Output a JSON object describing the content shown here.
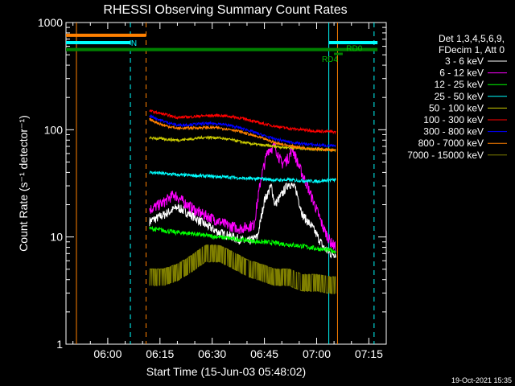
{
  "chart_data": {
    "type": "line",
    "title": "RHESSI Observing Summary Count Rates",
    "xlabel": "Start Time (15-Jun-03 05:48:02)",
    "ylabel": "Count Rate (s⁻¹ detector⁻¹)",
    "yscale": "log",
    "ylim": [
      1,
      1000
    ],
    "xlim_minutes": [
      348,
      440
    ],
    "y_ticks": [
      {
        "value": 1,
        "label": "1"
      },
      {
        "value": 10,
        "label": "10"
      },
      {
        "value": 100,
        "label": "100"
      },
      {
        "value": 1000,
        "label": "1000"
      }
    ],
    "x_ticks": [
      {
        "minute": 360,
        "label": "06:00"
      },
      {
        "minute": 375,
        "label": "06:15"
      },
      {
        "minute": 390,
        "label": "06:30"
      },
      {
        "minute": 405,
        "label": "06:45"
      },
      {
        "minute": 420,
        "label": "07:00"
      },
      {
        "minute": 435,
        "label": "07:15"
      }
    ],
    "legend_header": [
      "Det 1,3,4,5,6,9,",
      "FDecim 1, Att 0"
    ],
    "series": [
      {
        "name": "3 - 6 keV",
        "color": "#ffffff",
        "points": [
          [
            372,
            14
          ],
          [
            376,
            16
          ],
          [
            380,
            19
          ],
          [
            384,
            16
          ],
          [
            388,
            13
          ],
          [
            392,
            11
          ],
          [
            396,
            10
          ],
          [
            400,
            9
          ],
          [
            403,
            10
          ],
          [
            405,
            22
          ],
          [
            407,
            30
          ],
          [
            408,
            20
          ],
          [
            410,
            25
          ],
          [
            412,
            32
          ],
          [
            414,
            28
          ],
          [
            416,
            16
          ],
          [
            419,
            12
          ],
          [
            422,
            8
          ],
          [
            424,
            7
          ],
          [
            425.5,
            7
          ]
        ]
      },
      {
        "name": "6 - 12 keV",
        "color": "#ff00ff",
        "points": [
          [
            372,
            18
          ],
          [
            376,
            21
          ],
          [
            379,
            25
          ],
          [
            382,
            21
          ],
          [
            386,
            17
          ],
          [
            390,
            15
          ],
          [
            394,
            13
          ],
          [
            398,
            12
          ],
          [
            402,
            13
          ],
          [
            404,
            35
          ],
          [
            406,
            65
          ],
          [
            408,
            70
          ],
          [
            410,
            48
          ],
          [
            412,
            55
          ],
          [
            413,
            68
          ],
          [
            415,
            45
          ],
          [
            417,
            32
          ],
          [
            420,
            18
          ],
          [
            422,
            12
          ],
          [
            424,
            9
          ],
          [
            425.5,
            8
          ]
        ]
      },
      {
        "name": "12 - 25 keV",
        "color": "#00ff00",
        "points": [
          [
            372,
            12
          ],
          [
            376,
            11.5
          ],
          [
            380,
            11
          ],
          [
            384,
            10.8
          ],
          [
            388,
            10.3
          ],
          [
            392,
            10
          ],
          [
            396,
            9.6
          ],
          [
            400,
            9.3
          ],
          [
            404,
            9
          ],
          [
            408,
            8.8
          ],
          [
            412,
            8.5
          ],
          [
            416,
            8.2
          ],
          [
            420,
            7.8
          ],
          [
            424,
            7.5
          ],
          [
            425.5,
            7.3
          ]
        ]
      },
      {
        "name": "25 - 50 keV",
        "color": "#00ffff",
        "points": [
          [
            372,
            40
          ],
          [
            376,
            39
          ],
          [
            380,
            38
          ],
          [
            384,
            37.5
          ],
          [
            388,
            37
          ],
          [
            392,
            36.5
          ],
          [
            396,
            36
          ],
          [
            400,
            35
          ],
          [
            404,
            35
          ],
          [
            408,
            34
          ],
          [
            412,
            34
          ],
          [
            416,
            33.5
          ],
          [
            420,
            33
          ],
          [
            424,
            34
          ],
          [
            425.5,
            34
          ]
        ]
      },
      {
        "name": "50 - 100 keV",
        "color": "#cccc00",
        "points": [
          [
            372,
            84
          ],
          [
            376,
            82
          ],
          [
            380,
            80
          ],
          [
            384,
            82
          ],
          [
            388,
            85
          ],
          [
            392,
            84
          ],
          [
            396,
            80
          ],
          [
            400,
            75
          ],
          [
            404,
            72
          ],
          [
            408,
            70
          ],
          [
            412,
            68
          ],
          [
            416,
            67
          ],
          [
            420,
            66
          ],
          [
            424,
            65
          ],
          [
            425.5,
            65
          ]
        ]
      },
      {
        "name": "100 - 300 keV",
        "color": "#ff0000",
        "points": [
          [
            372,
            150
          ],
          [
            376,
            140
          ],
          [
            380,
            130
          ],
          [
            384,
            132
          ],
          [
            388,
            135
          ],
          [
            392,
            136
          ],
          [
            396,
            132
          ],
          [
            400,
            125
          ],
          [
            404,
            115
          ],
          [
            408,
            108
          ],
          [
            412,
            103
          ],
          [
            416,
            100
          ],
          [
            420,
            97
          ],
          [
            424,
            96
          ],
          [
            425.5,
            95
          ]
        ]
      },
      {
        "name": "300 - 800 keV",
        "color": "#0000ff",
        "points": [
          [
            372,
            135
          ],
          [
            376,
            120
          ],
          [
            380,
            110
          ],
          [
            384,
            112
          ],
          [
            388,
            114
          ],
          [
            392,
            114
          ],
          [
            396,
            108
          ],
          [
            400,
            100
          ],
          [
            404,
            90
          ],
          [
            408,
            82
          ],
          [
            412,
            77
          ],
          [
            416,
            74
          ],
          [
            420,
            72
          ],
          [
            424,
            71
          ],
          [
            425.5,
            70
          ]
        ]
      },
      {
        "name": "800 - 7000 keV",
        "color": "#ff8000",
        "points": [
          [
            372,
            125
          ],
          [
            376,
            110
          ],
          [
            380,
            103
          ],
          [
            384,
            104
          ],
          [
            388,
            105
          ],
          [
            392,
            104
          ],
          [
            396,
            100
          ],
          [
            400,
            92
          ],
          [
            404,
            84
          ],
          [
            408,
            76
          ],
          [
            412,
            71
          ],
          [
            416,
            68
          ],
          [
            420,
            66
          ],
          [
            424,
            65
          ],
          [
            425.5,
            64
          ]
        ]
      },
      {
        "name": "7000 - 15000 keV",
        "color": "#808000",
        "points": [
          [
            372,
            4.5
          ],
          [
            376,
            4.5
          ],
          [
            380,
            5
          ],
          [
            384,
            6
          ],
          [
            388,
            7.5
          ],
          [
            392,
            7.5
          ],
          [
            396,
            6.5
          ],
          [
            400,
            5.5
          ],
          [
            404,
            5
          ],
          [
            408,
            4.5
          ],
          [
            412,
            4.5
          ],
          [
            416,
            4
          ],
          [
            420,
            4
          ],
          [
            424,
            3.8
          ],
          [
            425.5,
            3.8
          ]
        ]
      }
    ],
    "vertical_markers": [
      {
        "minute": 351,
        "color": "#ff8000",
        "style": "solid"
      },
      {
        "minute": 366.5,
        "color": "#00ffff",
        "style": "dashed"
      },
      {
        "minute": 371,
        "color": "#ff8000",
        "style": "dashed"
      },
      {
        "minute": 423.5,
        "color": "#00ffff",
        "style": "solid"
      },
      {
        "minute": 426,
        "color": "#ff8000",
        "style": "solid"
      },
      {
        "minute": 436.5,
        "color": "#00ffff",
        "style": "dashed"
      }
    ],
    "flag_bars": [
      {
        "label": "",
        "color": "#00ffff",
        "value": 650,
        "x1": 348,
        "x2": 366.5
      },
      {
        "label": "N",
        "color": "#00ffff",
        "value": 650,
        "x1": 366.5,
        "x2": 366.5
      },
      {
        "label": "",
        "color": "#00ffff",
        "value": 650,
        "x1": 423.5,
        "x2": 437.5
      },
      {
        "label": "",
        "color": "#ff8000",
        "value": 760,
        "x1": 348,
        "x2": 371
      },
      {
        "label": "",
        "color": "#008000",
        "value": 560,
        "x1": 348,
        "x2": 437.5
      },
      {
        "label": "RD4",
        "color": "#008000",
        "value": 510,
        "x1": 425,
        "x2": 427.5
      },
      {
        "label": "RD0",
        "color": "#008000",
        "value": 560,
        "x1": 430,
        "x2": 430
      }
    ],
    "range_labels": {
      "n": "N",
      "rd4": "RD4",
      "rd0": "RD0"
    }
  },
  "timestamp": "19-Oct-2021 15:35"
}
